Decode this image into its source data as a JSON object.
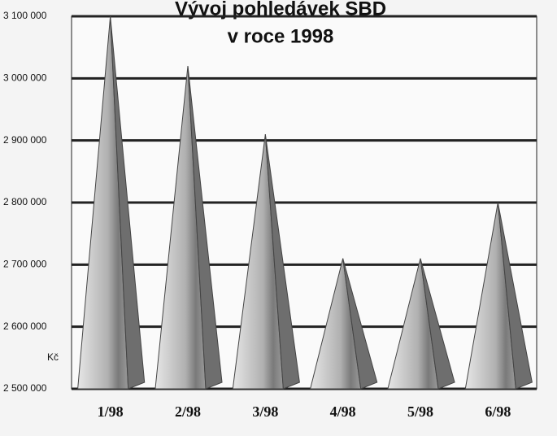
{
  "chart_data": {
    "type": "pyramid",
    "title": [
      "Vývoj pohledávek SBD",
      "v roce 1998"
    ],
    "y_axis_label": "Kč",
    "categories": [
      "1/98",
      "2/98",
      "3/98",
      "4/98",
      "5/98",
      "6/98"
    ],
    "values": [
      3100000,
      3020000,
      2910000,
      2710000,
      2710000,
      2800000
    ],
    "color": "#b8b8b8",
    "ylim": [
      2500000,
      3100000
    ],
    "yticks": [
      {
        "value": 2500000,
        "label": "2 500 000"
      },
      {
        "value": 2600000,
        "label": "2 600 000"
      },
      {
        "value": 2700000,
        "label": "2 700 000"
      },
      {
        "value": 2800000,
        "label": "2 800 000"
      },
      {
        "value": 2900000,
        "label": "2 900 000"
      },
      {
        "value": 3000000,
        "label": "3 000 000"
      },
      {
        "value": 3100000,
        "label": "3 100 000"
      }
    ],
    "grid": true
  }
}
